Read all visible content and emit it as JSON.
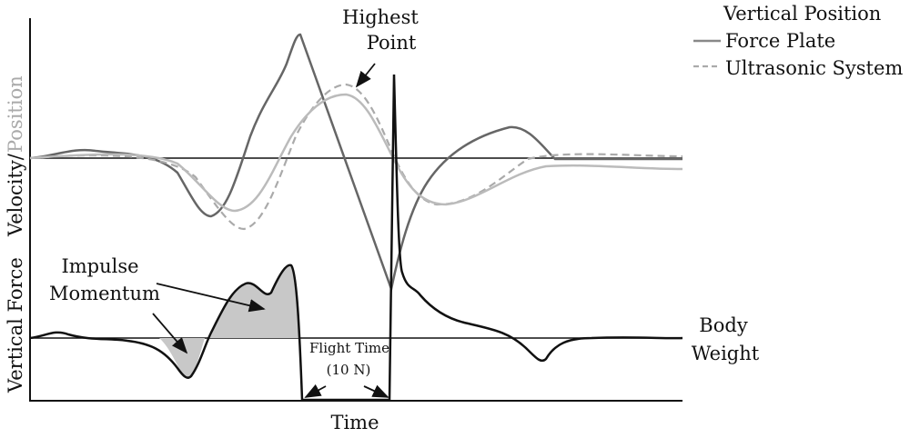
{
  "labels": {
    "highest_point": [
      "Highest",
      "Point"
    ],
    "legend_title": "Vertical Position",
    "legend_items": [
      "Force Plate",
      "Ultrasonic System"
    ],
    "y_label_top": [
      "Velocity/",
      "Position"
    ],
    "y_label_bottom": "Vertical Force",
    "impulse": [
      "Impulse",
      "Momentum"
    ],
    "flight_time": [
      "Flight Time",
      "(10 N)"
    ],
    "body_weight": [
      "Body",
      "Weight"
    ],
    "x_label": "Time"
  }
}
